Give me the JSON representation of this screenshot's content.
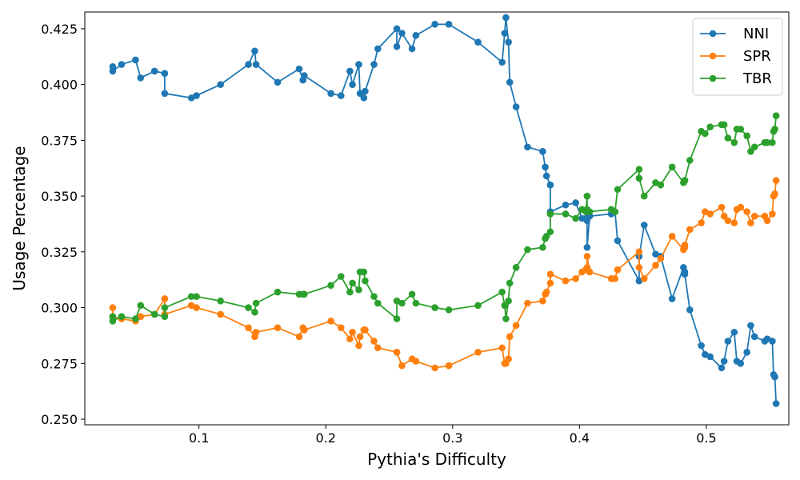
{
  "chart_data": {
    "type": "line",
    "title": "",
    "xlabel": "Pythia's Difficulty",
    "ylabel": "Usage Percentage",
    "xlim": [
      0.01,
      0.565
    ],
    "ylim": [
      0.2475,
      0.4325
    ],
    "xticks": [
      0.1,
      0.2,
      0.3,
      0.4,
      0.5
    ],
    "xtick_labels": [
      "0.1",
      "0.2",
      "0.3",
      "0.4",
      "0.5"
    ],
    "yticks": [
      0.25,
      0.275,
      0.3,
      0.325,
      0.35,
      0.375,
      0.4,
      0.425
    ],
    "ytick_labels": [
      "0.250",
      "0.275",
      "0.300",
      "0.325",
      "0.350",
      "0.375",
      "0.400",
      "0.425"
    ],
    "grid": false,
    "legend_position": "top-right",
    "series": [
      {
        "name": "NNI",
        "color": "#1f77b4",
        "points": [
          [
            0.032,
            0.408
          ],
          [
            0.032,
            0.406
          ],
          [
            0.039,
            0.409
          ],
          [
            0.05,
            0.411
          ],
          [
            0.054,
            0.403
          ],
          [
            0.065,
            0.406
          ],
          [
            0.073,
            0.405
          ],
          [
            0.073,
            0.396
          ],
          [
            0.094,
            0.394
          ],
          [
            0.098,
            0.395
          ],
          [
            0.117,
            0.4
          ],
          [
            0.139,
            0.409
          ],
          [
            0.144,
            0.415
          ],
          [
            0.145,
            0.409
          ],
          [
            0.162,
            0.401
          ],
          [
            0.179,
            0.407
          ],
          [
            0.182,
            0.402
          ],
          [
            0.183,
            0.404
          ],
          [
            0.204,
            0.396
          ],
          [
            0.212,
            0.395
          ],
          [
            0.219,
            0.406
          ],
          [
            0.221,
            0.4
          ],
          [
            0.226,
            0.409
          ],
          [
            0.227,
            0.396
          ],
          [
            0.23,
            0.394
          ],
          [
            0.231,
            0.397
          ],
          [
            0.238,
            0.409
          ],
          [
            0.241,
            0.416
          ],
          [
            0.256,
            0.425
          ],
          [
            0.256,
            0.417
          ],
          [
            0.26,
            0.423
          ],
          [
            0.268,
            0.416
          ],
          [
            0.271,
            0.422
          ],
          [
            0.286,
            0.427
          ],
          [
            0.297,
            0.427
          ],
          [
            0.32,
            0.419
          ],
          [
            0.339,
            0.41
          ],
          [
            0.341,
            0.423
          ],
          [
            0.342,
            0.43
          ],
          [
            0.344,
            0.419
          ],
          [
            0.345,
            0.401
          ],
          [
            0.35,
            0.39
          ],
          [
            0.359,
            0.372
          ],
          [
            0.371,
            0.37
          ],
          [
            0.373,
            0.363
          ],
          [
            0.374,
            0.359
          ],
          [
            0.377,
            0.355
          ],
          [
            0.377,
            0.343
          ],
          [
            0.389,
            0.346
          ],
          [
            0.397,
            0.347
          ],
          [
            0.402,
            0.34
          ],
          [
            0.405,
            0.34
          ],
          [
            0.406,
            0.339
          ],
          [
            0.406,
            0.327
          ],
          [
            0.408,
            0.341
          ],
          [
            0.425,
            0.342
          ],
          [
            0.428,
            0.343
          ],
          [
            0.43,
            0.33
          ],
          [
            0.447,
            0.312
          ],
          [
            0.447,
            0.323
          ],
          [
            0.451,
            0.337
          ],
          [
            0.46,
            0.324
          ],
          [
            0.464,
            0.323
          ],
          [
            0.473,
            0.304
          ],
          [
            0.482,
            0.318
          ],
          [
            0.483,
            0.316
          ],
          [
            0.483,
            0.315
          ],
          [
            0.487,
            0.299
          ],
          [
            0.496,
            0.283
          ],
          [
            0.499,
            0.279
          ],
          [
            0.503,
            0.278
          ],
          [
            0.512,
            0.273
          ],
          [
            0.514,
            0.276
          ],
          [
            0.517,
            0.285
          ],
          [
            0.522,
            0.289
          ],
          [
            0.524,
            0.276
          ],
          [
            0.527,
            0.275
          ],
          [
            0.532,
            0.28
          ],
          [
            0.535,
            0.292
          ],
          [
            0.538,
            0.287
          ],
          [
            0.546,
            0.285
          ],
          [
            0.548,
            0.286
          ],
          [
            0.552,
            0.285
          ],
          [
            0.553,
            0.27
          ],
          [
            0.554,
            0.269
          ],
          [
            0.555,
            0.257
          ]
        ]
      },
      {
        "name": "SPR",
        "color": "#ff7f0e",
        "points": [
          [
            0.032,
            0.3
          ],
          [
            0.032,
            0.296
          ],
          [
            0.039,
            0.295
          ],
          [
            0.05,
            0.294
          ],
          [
            0.054,
            0.296
          ],
          [
            0.065,
            0.297
          ],
          [
            0.073,
            0.304
          ],
          [
            0.073,
            0.297
          ],
          [
            0.094,
            0.301
          ],
          [
            0.098,
            0.3
          ],
          [
            0.117,
            0.297
          ],
          [
            0.139,
            0.291
          ],
          [
            0.144,
            0.287
          ],
          [
            0.145,
            0.289
          ],
          [
            0.162,
            0.291
          ],
          [
            0.179,
            0.287
          ],
          [
            0.182,
            0.291
          ],
          [
            0.183,
            0.29
          ],
          [
            0.204,
            0.294
          ],
          [
            0.212,
            0.291
          ],
          [
            0.219,
            0.286
          ],
          [
            0.221,
            0.289
          ],
          [
            0.226,
            0.283
          ],
          [
            0.227,
            0.287
          ],
          [
            0.23,
            0.29
          ],
          [
            0.231,
            0.29
          ],
          [
            0.238,
            0.285
          ],
          [
            0.241,
            0.282
          ],
          [
            0.256,
            0.28
          ],
          [
            0.256,
            0.28
          ],
          [
            0.26,
            0.274
          ],
          [
            0.268,
            0.277
          ],
          [
            0.271,
            0.276
          ],
          [
            0.286,
            0.273
          ],
          [
            0.297,
            0.274
          ],
          [
            0.32,
            0.28
          ],
          [
            0.339,
            0.282
          ],
          [
            0.341,
            0.275
          ],
          [
            0.342,
            0.275
          ],
          [
            0.344,
            0.277
          ],
          [
            0.345,
            0.287
          ],
          [
            0.35,
            0.292
          ],
          [
            0.359,
            0.302
          ],
          [
            0.371,
            0.303
          ],
          [
            0.373,
            0.306
          ],
          [
            0.374,
            0.307
          ],
          [
            0.377,
            0.311
          ],
          [
            0.377,
            0.315
          ],
          [
            0.389,
            0.312
          ],
          [
            0.397,
            0.313
          ],
          [
            0.402,
            0.316
          ],
          [
            0.405,
            0.317
          ],
          [
            0.406,
            0.318
          ],
          [
            0.406,
            0.323
          ],
          [
            0.408,
            0.316
          ],
          [
            0.425,
            0.313
          ],
          [
            0.428,
            0.313
          ],
          [
            0.43,
            0.317
          ],
          [
            0.447,
            0.325
          ],
          [
            0.447,
            0.318
          ],
          [
            0.451,
            0.313
          ],
          [
            0.46,
            0.319
          ],
          [
            0.464,
            0.322
          ],
          [
            0.473,
            0.332
          ],
          [
            0.482,
            0.326
          ],
          [
            0.483,
            0.327
          ],
          [
            0.483,
            0.328
          ],
          [
            0.487,
            0.335
          ],
          [
            0.496,
            0.338
          ],
          [
            0.499,
            0.343
          ],
          [
            0.503,
            0.342
          ],
          [
            0.512,
            0.345
          ],
          [
            0.514,
            0.341
          ],
          [
            0.517,
            0.339
          ],
          [
            0.522,
            0.338
          ],
          [
            0.524,
            0.344
          ],
          [
            0.527,
            0.345
          ],
          [
            0.532,
            0.343
          ],
          [
            0.535,
            0.338
          ],
          [
            0.538,
            0.341
          ],
          [
            0.546,
            0.341
          ],
          [
            0.548,
            0.339
          ],
          [
            0.552,
            0.342
          ],
          [
            0.553,
            0.35
          ],
          [
            0.554,
            0.351
          ],
          [
            0.555,
            0.357
          ]
        ]
      },
      {
        "name": "TBR",
        "color": "#2ca02c",
        "points": [
          [
            0.032,
            0.296
          ],
          [
            0.032,
            0.294
          ],
          [
            0.039,
            0.296
          ],
          [
            0.05,
            0.295
          ],
          [
            0.054,
            0.301
          ],
          [
            0.065,
            0.297
          ],
          [
            0.073,
            0.296
          ],
          [
            0.073,
            0.3
          ],
          [
            0.094,
            0.305
          ],
          [
            0.098,
            0.305
          ],
          [
            0.117,
            0.303
          ],
          [
            0.139,
            0.3
          ],
          [
            0.144,
            0.298
          ],
          [
            0.145,
            0.302
          ],
          [
            0.162,
            0.307
          ],
          [
            0.179,
            0.306
          ],
          [
            0.182,
            0.306
          ],
          [
            0.183,
            0.306
          ],
          [
            0.204,
            0.31
          ],
          [
            0.212,
            0.314
          ],
          [
            0.219,
            0.307
          ],
          [
            0.221,
            0.311
          ],
          [
            0.226,
            0.308
          ],
          [
            0.227,
            0.316
          ],
          [
            0.23,
            0.316
          ],
          [
            0.231,
            0.312
          ],
          [
            0.238,
            0.305
          ],
          [
            0.241,
            0.302
          ],
          [
            0.256,
            0.295
          ],
          [
            0.256,
            0.303
          ],
          [
            0.26,
            0.302
          ],
          [
            0.268,
            0.306
          ],
          [
            0.271,
            0.302
          ],
          [
            0.286,
            0.3
          ],
          [
            0.297,
            0.299
          ],
          [
            0.32,
            0.301
          ],
          [
            0.339,
            0.307
          ],
          [
            0.341,
            0.301
          ],
          [
            0.342,
            0.295
          ],
          [
            0.344,
            0.303
          ],
          [
            0.345,
            0.311
          ],
          [
            0.35,
            0.318
          ],
          [
            0.359,
            0.326
          ],
          [
            0.371,
            0.327
          ],
          [
            0.373,
            0.331
          ],
          [
            0.374,
            0.332
          ],
          [
            0.377,
            0.334
          ],
          [
            0.377,
            0.342
          ],
          [
            0.389,
            0.342
          ],
          [
            0.397,
            0.34
          ],
          [
            0.402,
            0.344
          ],
          [
            0.405,
            0.343
          ],
          [
            0.406,
            0.35
          ],
          [
            0.406,
            0.344
          ],
          [
            0.408,
            0.343
          ],
          [
            0.425,
            0.344
          ],
          [
            0.428,
            0.343
          ],
          [
            0.43,
            0.353
          ],
          [
            0.447,
            0.362
          ],
          [
            0.447,
            0.358
          ],
          [
            0.451,
            0.35
          ],
          [
            0.46,
            0.356
          ],
          [
            0.464,
            0.355
          ],
          [
            0.473,
            0.363
          ],
          [
            0.482,
            0.356
          ],
          [
            0.483,
            0.357
          ],
          [
            0.483,
            0.357
          ],
          [
            0.487,
            0.366
          ],
          [
            0.496,
            0.379
          ],
          [
            0.499,
            0.378
          ],
          [
            0.503,
            0.381
          ],
          [
            0.512,
            0.382
          ],
          [
            0.514,
            0.382
          ],
          [
            0.517,
            0.376
          ],
          [
            0.522,
            0.374
          ],
          [
            0.524,
            0.38
          ],
          [
            0.527,
            0.38
          ],
          [
            0.532,
            0.377
          ],
          [
            0.535,
            0.37
          ],
          [
            0.538,
            0.372
          ],
          [
            0.546,
            0.374
          ],
          [
            0.548,
            0.374
          ],
          [
            0.552,
            0.374
          ],
          [
            0.553,
            0.379
          ],
          [
            0.554,
            0.38
          ],
          [
            0.555,
            0.386
          ]
        ]
      }
    ]
  }
}
